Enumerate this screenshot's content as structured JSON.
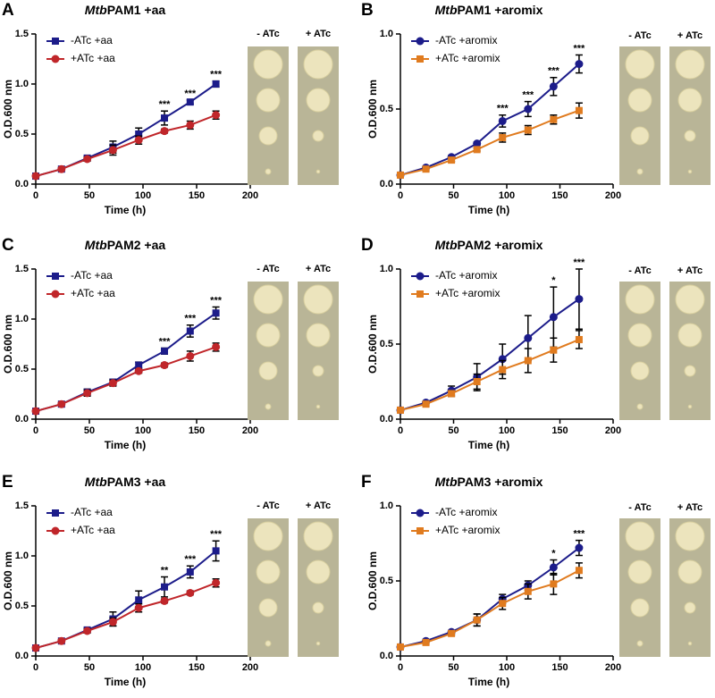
{
  "chart_data": [
    {
      "type": "line",
      "panel_label": "A",
      "title_italic": "Mtb",
      "title": "PAM1 +aa",
      "x_label": "Time (h)",
      "y_label": "O.D.600 nm",
      "x": [
        0,
        24,
        48,
        72,
        96,
        120,
        144,
        168
      ],
      "xlim": [
        0,
        200
      ],
      "xticks": [
        0,
        50,
        100,
        150,
        200
      ],
      "ylim": [
        0,
        1.5
      ],
      "yticks": [
        {
          "value": 0,
          "label": "0.0"
        },
        0.5,
        {
          "value": 1,
          "label": "1.0"
        },
        1.5
      ],
      "series": [
        {
          "name": "-ATc +aa",
          "color": "#1c1c8a",
          "marker": "square",
          "values": [
            0.08,
            0.15,
            0.26,
            0.37,
            0.5,
            0.66,
            0.82,
            1.0
          ],
          "errors": [
            0.01,
            0.01,
            0.02,
            0.06,
            0.06,
            0.07,
            0.02,
            0.03
          ]
        },
        {
          "name": "+ATc +aa",
          "color": "#c0262a",
          "marker": "circle",
          "values": [
            0.08,
            0.15,
            0.25,
            0.34,
            0.44,
            0.53,
            0.59,
            0.69
          ],
          "errors": [
            0.01,
            0.01,
            0.02,
            0.05,
            0.04,
            0.02,
            0.04,
            0.04
          ]
        }
      ],
      "annotations": [
        {
          "x": 120,
          "text": "***"
        },
        {
          "x": 144,
          "text": "***"
        },
        {
          "x": 168,
          "text": "***"
        }
      ],
      "plate_labels": [
        "- ATc",
        "+ ATc"
      ],
      "legend": "upper-left"
    },
    {
      "type": "line",
      "panel_label": "B",
      "title_italic": "Mtb",
      "title": "PAM1 +aromix",
      "x_label": "Time (h)",
      "y_label": "O.D.600 nm",
      "x": [
        0,
        24,
        48,
        72,
        96,
        120,
        144,
        168
      ],
      "xlim": [
        0,
        200
      ],
      "xticks": [
        0,
        50,
        100,
        150,
        200
      ],
      "ylim": [
        0,
        1
      ],
      "yticks": [
        {
          "value": 0,
          "label": "0.0"
        },
        0.5,
        {
          "value": 1,
          "label": "1.0"
        }
      ],
      "series": [
        {
          "name": "-ATc +aromix",
          "color": "#1c1c8a",
          "marker": "circle",
          "values": [
            0.06,
            0.11,
            0.18,
            0.27,
            0.42,
            0.5,
            0.65,
            0.8
          ],
          "errors": [
            0.01,
            0.01,
            0.01,
            0.01,
            0.04,
            0.05,
            0.06,
            0.06
          ]
        },
        {
          "name": "+ATc +aromix",
          "color": "#e07b1f",
          "marker": "square",
          "values": [
            0.06,
            0.1,
            0.16,
            0.23,
            0.31,
            0.36,
            0.43,
            0.49
          ],
          "errors": [
            0.01,
            0.01,
            0.01,
            0.01,
            0.03,
            0.03,
            0.03,
            0.05
          ]
        }
      ],
      "annotations": [
        {
          "x": 96,
          "text": "***"
        },
        {
          "x": 120,
          "text": "***"
        },
        {
          "x": 144,
          "text": "***"
        },
        {
          "x": 168,
          "text": "***"
        }
      ],
      "plate_labels": [
        "- ATc",
        "+ ATc"
      ],
      "legend": "upper-left"
    },
    {
      "type": "line",
      "panel_label": "C",
      "title_italic": "Mtb",
      "title": "PAM2 +aa",
      "x_label": "Time (h)",
      "y_label": "O.D.600 nm",
      "x": [
        0,
        24,
        48,
        72,
        96,
        120,
        144,
        168
      ],
      "xlim": [
        0,
        200
      ],
      "xticks": [
        0,
        50,
        100,
        150,
        200
      ],
      "ylim": [
        0,
        1.5
      ],
      "yticks": [
        {
          "value": 0,
          "label": "0.0"
        },
        0.5,
        {
          "value": 1,
          "label": "1.0"
        },
        1.5
      ],
      "series": [
        {
          "name": "-ATc +aa",
          "color": "#1c1c8a",
          "marker": "square",
          "values": [
            0.08,
            0.15,
            0.27,
            0.37,
            0.54,
            0.68,
            0.88,
            1.06
          ],
          "errors": [
            0.01,
            0.01,
            0.03,
            0.03,
            0.03,
            0.03,
            0.06,
            0.06
          ]
        },
        {
          "name": "+ATc +aa",
          "color": "#c0262a",
          "marker": "circle",
          "values": [
            0.08,
            0.15,
            0.26,
            0.36,
            0.48,
            0.54,
            0.63,
            0.72
          ],
          "errors": [
            0.01,
            0.01,
            0.03,
            0.03,
            0.02,
            0.02,
            0.05,
            0.04
          ]
        }
      ],
      "annotations": [
        {
          "x": 120,
          "text": "***"
        },
        {
          "x": 144,
          "text": "***"
        },
        {
          "x": 168,
          "text": "***"
        }
      ],
      "plate_labels": [
        "- ATc",
        "+ ATc"
      ],
      "legend": "upper-left"
    },
    {
      "type": "line",
      "panel_label": "D",
      "title_italic": "Mtb",
      "title": "PAM2 +aromix",
      "x_label": "Time (h)",
      "y_label": "O.D.600 nm",
      "x": [
        0,
        24,
        48,
        72,
        96,
        120,
        144,
        168
      ],
      "xlim": [
        0,
        200
      ],
      "xticks": [
        0,
        50,
        100,
        150,
        200
      ],
      "ylim": [
        0,
        1
      ],
      "yticks": [
        {
          "value": 0,
          "label": "0.0"
        },
        0.5,
        {
          "value": 1,
          "label": "1.0"
        }
      ],
      "series": [
        {
          "name": "-ATc +aromix",
          "color": "#1c1c8a",
          "marker": "circle",
          "values": [
            0.06,
            0.11,
            0.19,
            0.28,
            0.4,
            0.54,
            0.68,
            0.8
          ],
          "errors": [
            0.01,
            0.01,
            0.03,
            0.09,
            0.1,
            0.15,
            0.2,
            0.2
          ]
        },
        {
          "name": "+ATc +aromix",
          "color": "#e07b1f",
          "marker": "square",
          "values": [
            0.06,
            0.1,
            0.17,
            0.25,
            0.33,
            0.39,
            0.46,
            0.53
          ],
          "errors": [
            0.01,
            0.01,
            0.02,
            0.05,
            0.06,
            0.08,
            0.08,
            0.06
          ]
        }
      ],
      "annotations": [
        {
          "x": 144,
          "text": "*"
        },
        {
          "x": 168,
          "text": "***"
        }
      ],
      "plate_labels": [
        "- ATc",
        "+ ATc"
      ],
      "legend": "upper-left"
    },
    {
      "type": "line",
      "panel_label": "E",
      "title_italic": "Mtb",
      "title": "PAM3 +aa",
      "x_label": "Time (h)",
      "y_label": "O.D.600 nm",
      "x": [
        0,
        24,
        48,
        72,
        96,
        120,
        144,
        168
      ],
      "xlim": [
        0,
        200
      ],
      "xticks": [
        0,
        50,
        100,
        150,
        200
      ],
      "ylim": [
        0,
        1.5
      ],
      "yticks": [
        {
          "value": 0,
          "label": "0.0"
        },
        0.5,
        {
          "value": 1,
          "label": "1.0"
        },
        1.5
      ],
      "series": [
        {
          "name": "-ATc +aa",
          "color": "#1c1c8a",
          "marker": "square",
          "values": [
            0.08,
            0.15,
            0.26,
            0.37,
            0.56,
            0.69,
            0.84,
            1.05
          ],
          "errors": [
            0.01,
            0.01,
            0.02,
            0.07,
            0.09,
            0.1,
            0.06,
            0.1
          ]
        },
        {
          "name": "+ATc +aa",
          "color": "#c0262a",
          "marker": "circle",
          "values": [
            0.08,
            0.15,
            0.25,
            0.34,
            0.48,
            0.55,
            0.63,
            0.73
          ],
          "errors": [
            0.01,
            0.01,
            0.02,
            0.04,
            0.04,
            0.02,
            0.02,
            0.04
          ]
        }
      ],
      "annotations": [
        {
          "x": 120,
          "text": "**"
        },
        {
          "x": 144,
          "text": "***"
        },
        {
          "x": 168,
          "text": "***"
        }
      ],
      "plate_labels": [
        "- ATc",
        "+ ATc"
      ],
      "legend": "upper-left"
    },
    {
      "type": "line",
      "panel_label": "F",
      "title_italic": "Mtb",
      "title": "PAM3 +aromix",
      "x_label": "Time (h)",
      "y_label": "O.D.600 nm",
      "x": [
        0,
        24,
        48,
        72,
        96,
        120,
        144,
        168
      ],
      "xlim": [
        0,
        200
      ],
      "xticks": [
        0,
        50,
        100,
        150,
        200
      ],
      "ylim": [
        0,
        1
      ],
      "yticks": [
        {
          "value": 0,
          "label": "0.0"
        },
        0.5,
        {
          "value": 1,
          "label": "1.0"
        }
      ],
      "series": [
        {
          "name": "-ATc +aromix",
          "color": "#1c1c8a",
          "marker": "circle",
          "values": [
            0.06,
            0.1,
            0.16,
            0.24,
            0.38,
            0.47,
            0.59,
            0.72
          ],
          "errors": [
            0.01,
            0.01,
            0.01,
            0.04,
            0.03,
            0.03,
            0.05,
            0.05
          ]
        },
        {
          "name": "+ATc +aromix",
          "color": "#e07b1f",
          "marker": "square",
          "values": [
            0.06,
            0.09,
            0.15,
            0.24,
            0.35,
            0.43,
            0.48,
            0.57
          ],
          "errors": [
            0.01,
            0.01,
            0.01,
            0.04,
            0.04,
            0.05,
            0.07,
            0.05
          ]
        }
      ],
      "annotations": [
        {
          "x": 144,
          "text": "*"
        },
        {
          "x": 168,
          "text": "***"
        }
      ],
      "plate_labels": [
        "- ATc",
        "+ ATc"
      ],
      "legend": "upper-left"
    }
  ]
}
